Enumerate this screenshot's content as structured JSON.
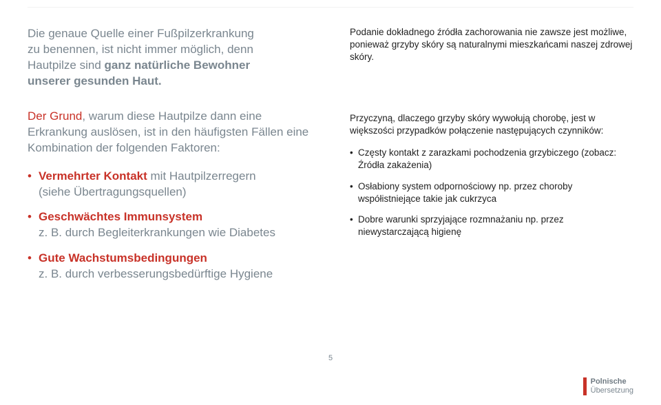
{
  "colors": {
    "accent": "#c83228",
    "mutedText": "#7a868f",
    "bodyText": "#222222",
    "background": "#ffffff",
    "divider": "#f2f2f2"
  },
  "typography": {
    "leftFontSize": 17,
    "rightFontSize": 13.5,
    "pageNumFontSize": 11,
    "footerFontSize": 11
  },
  "left": {
    "intro": {
      "p1": "Die genaue Quelle einer Fußpilzerkrankung",
      "p2": "zu benennen, ist nicht immer möglich, denn",
      "p3a": "Hautpilze sind ",
      "p3b_bold": "ganz natürliche Bewohner",
      "p4_bold": "unserer gesunden Haut."
    },
    "reason": {
      "accentPrefix": "Der Grund",
      "rest": ", warum diese Hautpilze dann eine Erkrankung auslösen, ist in den häufigsten Fällen eine Kombination der folgenden Faktoren:"
    },
    "bullets": [
      {
        "lead": "Vermehrter Kontakt",
        "tail": " mit Hautpilzerregern",
        "sub": "(siehe Übertragungsquellen)"
      },
      {
        "lead": "Geschwächtes Immunsystem",
        "tail": "",
        "sub": "z. B. durch Begleiterkrankungen wie Diabetes"
      },
      {
        "lead": "Gute Wachstumsbedingungen",
        "tail": "",
        "sub": "z. B. durch verbesserungsbedürftige Hygiene"
      }
    ]
  },
  "right": {
    "intro": "Podanie dokładnego źródła zachorowania nie zawsze jest możliwe, ponieważ grzyby skóry są naturalnymi mieszkańcami naszej zdrowej skóry.",
    "reason": "Przyczyną, dlaczego grzyby skóry wywołują chorobę, jest w większości przypadków połączenie następujących czynników:",
    "bullets": [
      "Częsty kontakt z zarazkami pochodzenia grzybiczego (zobacz: Źródła zakażenia)",
      "Osłabiony system odpornościowy np. przez choroby współistniejące takie jak cukrzyca",
      "Dobre warunki sprzyjające rozmnażaniu np. przez niewystarczającą higienę"
    ]
  },
  "pageNumber": "5",
  "footer": {
    "line1": "Polnische",
    "line2": "Übersetzung"
  }
}
